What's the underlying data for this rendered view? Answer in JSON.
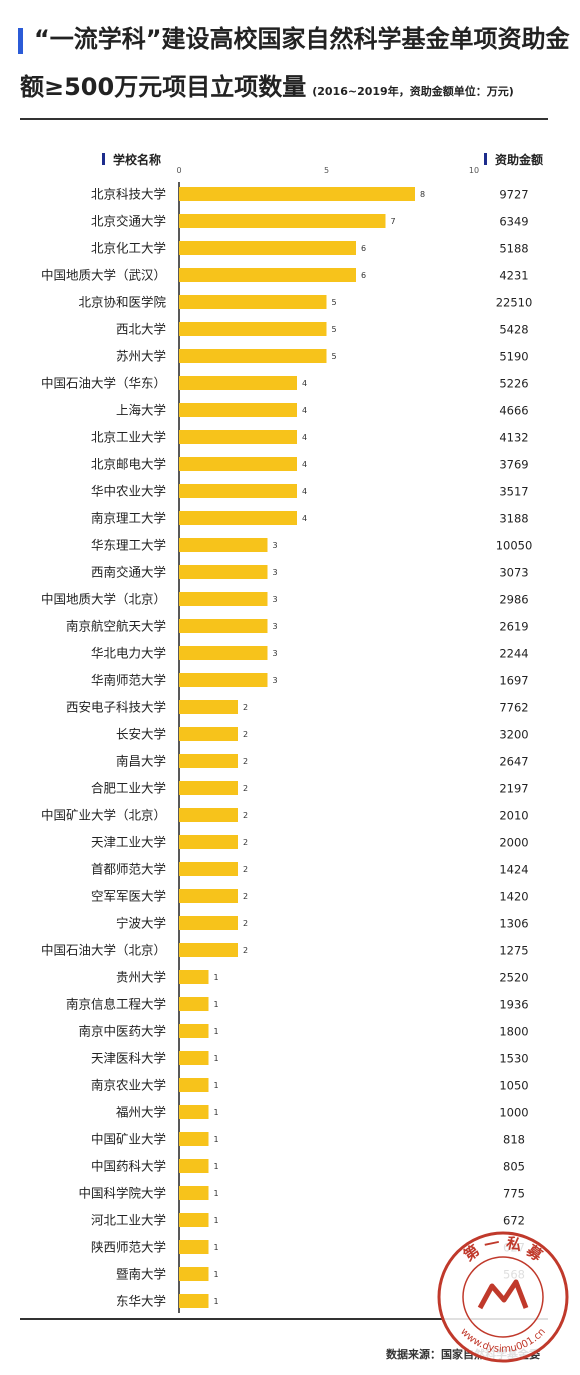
{
  "title": {
    "line1": "“一流学科”建设高校国家自然科学基金单项资助金",
    "line2": "额≥500万元项目立项数量",
    "note": "(2016~2019年，资助金额单位：万元)"
  },
  "columns": {
    "school": "学校名称",
    "amount": "资助金额"
  },
  "source": "数据来源：国家自然科学基金委",
  "seal": {
    "text_top": "第 一 私 募",
    "text_bottom": "www.dysimu001.cn",
    "color": "#c0392b"
  },
  "chart_data": {
    "type": "bar",
    "orientation": "horizontal",
    "x_ticks": [
      "0",
      "5",
      "10"
    ],
    "xlim": [
      0,
      10
    ],
    "bar_color": "#f7c31b",
    "categories": [
      "北京科技大学",
      "北京交通大学",
      "北京化工大学",
      "中国地质大学（武汉）",
      "北京协和医学院",
      "西北大学",
      "苏州大学",
      "中国石油大学（华东）",
      "上海大学",
      "北京工业大学",
      "北京邮电大学",
      "华中农业大学",
      "南京理工大学",
      "华东理工大学",
      "西南交通大学",
      "中国地质大学（北京）",
      "南京航空航天大学",
      "华北电力大学",
      "华南师范大学",
      "西安电子科技大学",
      "长安大学",
      "南昌大学",
      "合肥工业大学",
      "中国矿业大学（北京）",
      "天津工业大学",
      "首都师范大学",
      "空军军医大学",
      "宁波大学",
      "中国石油大学（北京）",
      "贵州大学",
      "南京信息工程大学",
      "南京中医药大学",
      "天津医科大学",
      "南京农业大学",
      "福州大学",
      "中国矿业大学",
      "中国药科大学",
      "中国科学院大学",
      "河北工业大学",
      "陕西师范大学",
      "暨南大学",
      "东华大学"
    ],
    "values": [
      8,
      7,
      6,
      6,
      5,
      5,
      5,
      4,
      4,
      4,
      4,
      4,
      4,
      3,
      3,
      3,
      3,
      3,
      3,
      2,
      2,
      2,
      2,
      2,
      2,
      2,
      2,
      2,
      2,
      1,
      1,
      1,
      1,
      1,
      1,
      1,
      1,
      1,
      1,
      1,
      1,
      1
    ],
    "amounts": [
      "9727",
      "6349",
      "5188",
      "4231",
      "22510",
      "5428",
      "5190",
      "5226",
      "4666",
      "4132",
      "3769",
      "3517",
      "3188",
      "10050",
      "3073",
      "2986",
      "2619",
      "2244",
      "1697",
      "7762",
      "3200",
      "2647",
      "2197",
      "2010",
      "2000",
      "1424",
      "1420",
      "1306",
      "1275",
      "2520",
      "1936",
      "1800",
      "1530",
      "1050",
      "1000",
      "818",
      "805",
      "775",
      "672",
      "627",
      "568",
      ""
    ]
  }
}
